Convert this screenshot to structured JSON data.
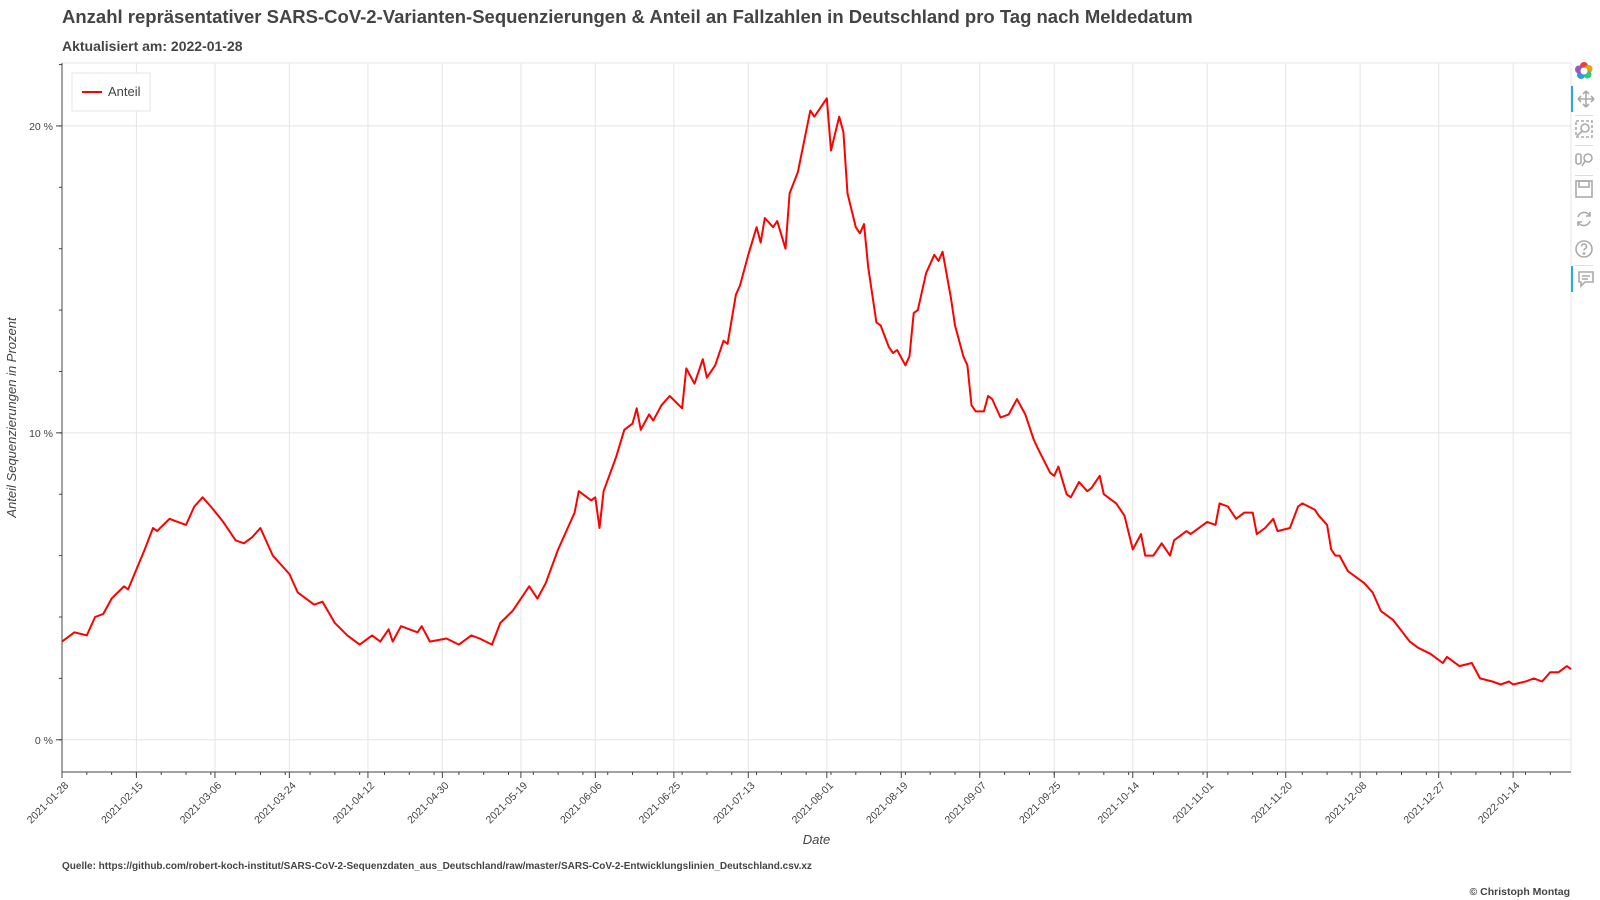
{
  "header": {
    "title": "Anzahl repräsentativer SARS-CoV-2-Varianten-Sequenzierungen & Anteil an Fallzahlen in Deutschland pro Tag nach Meldedatum",
    "subtitle": "Aktualisiert am: 2022-01-28"
  },
  "footer": {
    "source": "Quelle: https://github.com/robert-koch-institut/SARS-CoV-2-Sequenzdaten_aus_Deutschland/raw/master/SARS-CoV-2-Entwicklungslinien_Deutschland.csv.xz",
    "copyright": "© Christoph Montag"
  },
  "toolbar": {
    "tools": [
      {
        "name": "bokeh-logo-icon",
        "active": false
      },
      {
        "name": "pan-tool-icon",
        "active": true
      },
      {
        "name": "box-zoom-tool-icon",
        "active": false
      },
      {
        "name": "wheel-zoom-tool-icon",
        "active": false
      },
      {
        "name": "save-tool-icon",
        "active": false
      },
      {
        "name": "reset-tool-icon",
        "active": false
      },
      {
        "name": "help-tool-icon",
        "active": false
      },
      {
        "name": "hover-tool-icon",
        "active": true
      }
    ]
  },
  "chart_data": {
    "type": "line",
    "xlabel": "Date",
    "ylabel": "Anteil Sequenzierungen in Prozent",
    "x_range": [
      "2021-01-28",
      "2022-01-28"
    ],
    "ylim": [
      -1.05,
      22.05
    ],
    "y_ticks": [
      {
        "value": 0,
        "label": "0 %"
      },
      {
        "value": 10,
        "label": "10 %"
      },
      {
        "value": 20,
        "label": "20 %"
      }
    ],
    "x_ticks": [
      "2021-01-28",
      "2021-02-15",
      "2021-03-06",
      "2021-03-24",
      "2021-04-12",
      "2021-04-30",
      "2021-05-19",
      "2021-06-06",
      "2021-06-25",
      "2021-07-13",
      "2021-08-01",
      "2021-08-19",
      "2021-09-07",
      "2021-09-25",
      "2021-10-14",
      "2021-11-01",
      "2021-11-20",
      "2021-12-08",
      "2021-12-27",
      "2022-01-14"
    ],
    "grid": true,
    "legend": {
      "position": "top-left"
    },
    "series": [
      {
        "name": "Anteil",
        "color": "#ff0000",
        "points": [
          [
            "2021-01-28",
            3.2
          ],
          [
            "2021-01-31",
            3.5
          ],
          [
            "2021-02-03",
            3.4
          ],
          [
            "2021-02-05",
            4.0
          ],
          [
            "2021-02-07",
            4.1
          ],
          [
            "2021-02-09",
            4.6
          ],
          [
            "2021-02-12",
            5.0
          ],
          [
            "2021-02-13",
            4.9
          ],
          [
            "2021-02-17",
            6.2
          ],
          [
            "2021-02-19",
            6.9
          ],
          [
            "2021-02-20",
            6.8
          ],
          [
            "2021-02-23",
            7.2
          ],
          [
            "2021-02-25",
            7.1
          ],
          [
            "2021-02-27",
            7.0
          ],
          [
            "2021-03-01",
            7.6
          ],
          [
            "2021-03-03",
            7.9
          ],
          [
            "2021-03-05",
            7.6
          ],
          [
            "2021-03-08",
            7.1
          ],
          [
            "2021-03-11",
            6.5
          ],
          [
            "2021-03-13",
            6.4
          ],
          [
            "2021-03-15",
            6.6
          ],
          [
            "2021-03-17",
            6.9
          ],
          [
            "2021-03-20",
            6.0
          ],
          [
            "2021-03-24",
            5.4
          ],
          [
            "2021-03-26",
            4.8
          ],
          [
            "2021-03-30",
            4.4
          ],
          [
            "2021-04-01",
            4.5
          ],
          [
            "2021-04-04",
            3.8
          ],
          [
            "2021-04-07",
            3.4
          ],
          [
            "2021-04-10",
            3.1
          ],
          [
            "2021-04-13",
            3.4
          ],
          [
            "2021-04-15",
            3.2
          ],
          [
            "2021-04-17",
            3.6
          ],
          [
            "2021-04-18",
            3.2
          ],
          [
            "2021-04-20",
            3.7
          ],
          [
            "2021-04-24",
            3.5
          ],
          [
            "2021-04-25",
            3.7
          ],
          [
            "2021-04-27",
            3.2
          ],
          [
            "2021-05-01",
            3.3
          ],
          [
            "2021-05-04",
            3.1
          ],
          [
            "2021-05-07",
            3.4
          ],
          [
            "2021-05-09",
            3.3
          ],
          [
            "2021-05-12",
            3.1
          ],
          [
            "2021-05-14",
            3.8
          ],
          [
            "2021-05-17",
            4.2
          ],
          [
            "2021-05-21",
            5.0
          ],
          [
            "2021-05-23",
            4.6
          ],
          [
            "2021-05-25",
            5.1
          ],
          [
            "2021-05-28",
            6.2
          ],
          [
            "2021-06-01",
            7.4
          ],
          [
            "2021-06-02",
            8.1
          ],
          [
            "2021-06-05",
            7.8
          ],
          [
            "2021-06-06",
            7.9
          ],
          [
            "2021-06-07",
            6.9
          ],
          [
            "2021-06-08",
            8.1
          ],
          [
            "2021-06-11",
            9.2
          ],
          [
            "2021-06-13",
            10.1
          ],
          [
            "2021-06-15",
            10.3
          ],
          [
            "2021-06-16",
            10.8
          ],
          [
            "2021-06-17",
            10.1
          ],
          [
            "2021-06-19",
            10.6
          ],
          [
            "2021-06-20",
            10.4
          ],
          [
            "2021-06-22",
            10.9
          ],
          [
            "2021-06-24",
            11.2
          ],
          [
            "2021-06-27",
            10.8
          ],
          [
            "2021-06-28",
            12.1
          ],
          [
            "2021-06-30",
            11.6
          ],
          [
            "2021-07-02",
            12.4
          ],
          [
            "2021-07-03",
            11.8
          ],
          [
            "2021-07-05",
            12.2
          ],
          [
            "2021-07-07",
            13.0
          ],
          [
            "2021-07-08",
            12.9
          ],
          [
            "2021-07-10",
            14.5
          ],
          [
            "2021-07-11",
            14.8
          ],
          [
            "2021-07-13",
            15.8
          ],
          [
            "2021-07-15",
            16.7
          ],
          [
            "2021-07-16",
            16.2
          ],
          [
            "2021-07-17",
            17.0
          ],
          [
            "2021-07-19",
            16.7
          ],
          [
            "2021-07-20",
            16.9
          ],
          [
            "2021-07-22",
            16.0
          ],
          [
            "2021-07-23",
            17.8
          ],
          [
            "2021-07-25",
            18.5
          ],
          [
            "2021-07-28",
            20.5
          ],
          [
            "2021-07-29",
            20.3
          ],
          [
            "2021-08-01",
            20.9
          ],
          [
            "2021-08-02",
            19.2
          ],
          [
            "2021-08-04",
            20.3
          ],
          [
            "2021-08-05",
            19.8
          ],
          [
            "2021-08-06",
            17.8
          ],
          [
            "2021-08-08",
            16.7
          ],
          [
            "2021-08-09",
            16.5
          ],
          [
            "2021-08-10",
            16.8
          ],
          [
            "2021-08-11",
            15.4
          ],
          [
            "2021-08-13",
            13.6
          ],
          [
            "2021-08-14",
            13.5
          ],
          [
            "2021-08-16",
            12.8
          ],
          [
            "2021-08-17",
            12.6
          ],
          [
            "2021-08-18",
            12.7
          ],
          [
            "2021-08-20",
            12.2
          ],
          [
            "2021-08-21",
            12.5
          ],
          [
            "2021-08-22",
            13.9
          ],
          [
            "2021-08-23",
            14.0
          ],
          [
            "2021-08-25",
            15.2
          ],
          [
            "2021-08-27",
            15.8
          ],
          [
            "2021-08-28",
            15.6
          ],
          [
            "2021-08-29",
            15.9
          ],
          [
            "2021-08-31",
            14.4
          ],
          [
            "2021-09-01",
            13.5
          ],
          [
            "2021-09-03",
            12.5
          ],
          [
            "2021-09-04",
            12.2
          ],
          [
            "2021-09-05",
            10.9
          ],
          [
            "2021-09-06",
            10.7
          ],
          [
            "2021-09-08",
            10.7
          ],
          [
            "2021-09-09",
            11.2
          ],
          [
            "2021-09-10",
            11.1
          ],
          [
            "2021-09-12",
            10.5
          ],
          [
            "2021-09-14",
            10.6
          ],
          [
            "2021-09-16",
            11.1
          ],
          [
            "2021-09-18",
            10.6
          ],
          [
            "2021-09-20",
            9.8
          ],
          [
            "2021-09-21",
            9.5
          ],
          [
            "2021-09-24",
            8.7
          ],
          [
            "2021-09-25",
            8.6
          ],
          [
            "2021-09-26",
            8.9
          ],
          [
            "2021-09-28",
            8.0
          ],
          [
            "2021-09-29",
            7.9
          ],
          [
            "2021-10-01",
            8.4
          ],
          [
            "2021-10-03",
            8.1
          ],
          [
            "2021-10-04",
            8.2
          ],
          [
            "2021-10-06",
            8.6
          ],
          [
            "2021-10-07",
            8.0
          ],
          [
            "2021-10-10",
            7.7
          ],
          [
            "2021-10-12",
            7.3
          ],
          [
            "2021-10-14",
            6.2
          ],
          [
            "2021-10-16",
            6.7
          ],
          [
            "2021-10-17",
            6.0
          ],
          [
            "2021-10-19",
            6.0
          ],
          [
            "2021-10-21",
            6.4
          ],
          [
            "2021-10-23",
            6.0
          ],
          [
            "2021-10-24",
            6.5
          ],
          [
            "2021-10-27",
            6.8
          ],
          [
            "2021-10-28",
            6.7
          ],
          [
            "2021-10-31",
            7.0
          ],
          [
            "2021-11-01",
            7.1
          ],
          [
            "2021-11-03",
            7.0
          ],
          [
            "2021-11-04",
            7.7
          ],
          [
            "2021-11-06",
            7.6
          ],
          [
            "2021-11-08",
            7.2
          ],
          [
            "2021-11-10",
            7.4
          ],
          [
            "2021-11-12",
            7.4
          ],
          [
            "2021-11-13",
            6.7
          ],
          [
            "2021-11-15",
            6.9
          ],
          [
            "2021-11-17",
            7.2
          ],
          [
            "2021-11-18",
            6.8
          ],
          [
            "2021-11-21",
            6.9
          ],
          [
            "2021-11-23",
            7.6
          ],
          [
            "2021-11-24",
            7.7
          ],
          [
            "2021-11-27",
            7.5
          ],
          [
            "2021-11-28",
            7.3
          ],
          [
            "2021-11-30",
            7.0
          ],
          [
            "2021-12-01",
            6.2
          ],
          [
            "2021-12-02",
            6.0
          ],
          [
            "2021-12-03",
            6.0
          ],
          [
            "2021-12-05",
            5.5
          ],
          [
            "2021-12-07",
            5.3
          ],
          [
            "2021-12-09",
            5.1
          ],
          [
            "2021-12-11",
            4.8
          ],
          [
            "2021-12-13",
            4.2
          ],
          [
            "2021-12-16",
            3.9
          ],
          [
            "2021-12-20",
            3.2
          ],
          [
            "2021-12-22",
            3.0
          ],
          [
            "2021-12-25",
            2.8
          ],
          [
            "2021-12-28",
            2.5
          ],
          [
            "2021-12-29",
            2.7
          ],
          [
            "2022-01-01",
            2.4
          ],
          [
            "2022-01-04",
            2.5
          ],
          [
            "2022-01-06",
            2.0
          ],
          [
            "2022-01-09",
            1.9
          ],
          [
            "2022-01-11",
            1.8
          ],
          [
            "2022-01-13",
            1.9
          ],
          [
            "2022-01-14",
            1.8
          ],
          [
            "2022-01-17",
            1.9
          ],
          [
            "2022-01-19",
            2.0
          ],
          [
            "2022-01-21",
            1.9
          ],
          [
            "2022-01-23",
            2.2
          ],
          [
            "2022-01-25",
            2.2
          ],
          [
            "2022-01-27",
            2.4
          ],
          [
            "2022-01-28",
            2.3
          ]
        ]
      }
    ]
  }
}
